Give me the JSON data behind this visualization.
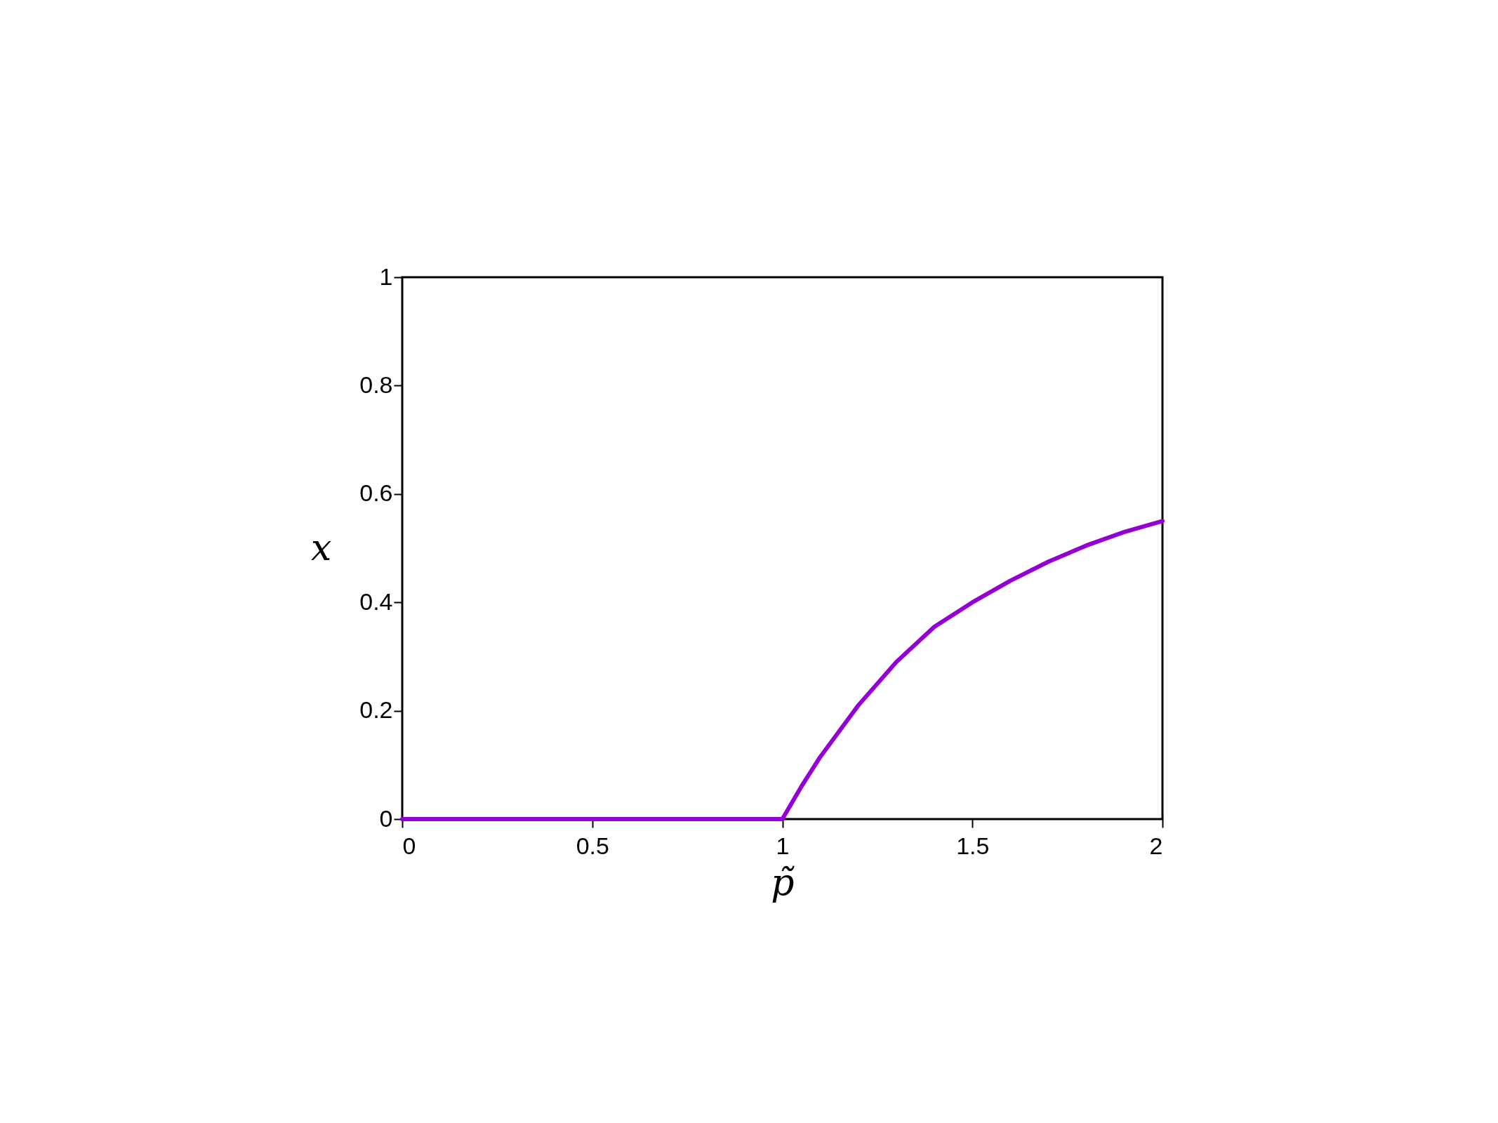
{
  "chart_data": {
    "type": "line",
    "xlabel": "p̃",
    "ylabel": "x",
    "x": [
      0,
      0.5,
      0.98,
      1.0,
      1.05,
      1.1,
      1.2,
      1.3,
      1.4,
      1.5,
      1.6,
      1.7,
      1.8,
      1.9,
      2.0
    ],
    "series": [
      {
        "color": "#9400d3",
        "values": [
          0,
          0,
          0,
          0,
          0.06,
          0.115,
          0.21,
          0.29,
          0.355,
          0.4,
          0.44,
          0.475,
          0.505,
          0.53,
          0.55
        ]
      }
    ],
    "xlim": [
      0,
      2
    ],
    "ylim": [
      0,
      1
    ],
    "xticks": [
      0,
      0.5,
      1,
      1.5,
      2
    ],
    "yticks": [
      0,
      0.2,
      0.4,
      0.6,
      0.8,
      1
    ],
    "grid": false,
    "legend": false,
    "marker": "none",
    "line_style": "solid"
  }
}
